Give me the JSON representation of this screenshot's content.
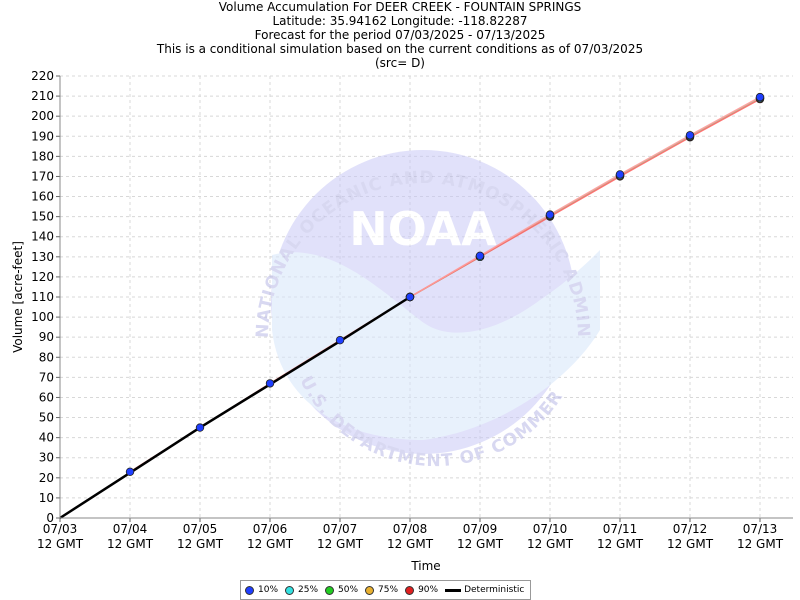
{
  "chart_data": {
    "type": "line",
    "title_lines": [
      "Volume Accumulation For DEER CREEK - FOUNTAIN SPRINGS",
      "Latitude: 35.94162 Longitude: -118.82287",
      "Forecast for the period 07/03/2025 - 07/13/2025",
      "This is a conditional simulation based on the current conditions as of 07/03/2025",
      "(src= D)"
    ],
    "xlabel": "Time",
    "ylabel": "Volume [acre-feet]",
    "ylim": [
      0,
      220
    ],
    "yticks": [
      0,
      10,
      20,
      30,
      40,
      50,
      60,
      70,
      80,
      90,
      100,
      110,
      120,
      130,
      140,
      150,
      160,
      170,
      180,
      190,
      200,
      210,
      220
    ],
    "x_tick_labels": [
      [
        "07/03",
        "12 GMT"
      ],
      [
        "07/04",
        "12 GMT"
      ],
      [
        "07/05",
        "12 GMT"
      ],
      [
        "07/06",
        "12 GMT"
      ],
      [
        "07/07",
        "12 GMT"
      ],
      [
        "07/08",
        "12 GMT"
      ],
      [
        "07/09",
        "12 GMT"
      ],
      [
        "07/10",
        "12 GMT"
      ],
      [
        "07/11",
        "12 GMT"
      ],
      [
        "07/12",
        "12 GMT"
      ],
      [
        "07/13",
        "12 GMT"
      ]
    ],
    "grid": true,
    "legend_position": "bottom-center",
    "series": [
      {
        "name": "10%",
        "color": "#1f3fff",
        "marker": "dot",
        "values": [
          null,
          23,
          45,
          67,
          88.5,
          110,
          130.5,
          151,
          171,
          190.5,
          209.5
        ]
      },
      {
        "name": "25%",
        "color": "#33e0e0",
        "marker": "dot",
        "values": [
          null,
          null,
          null,
          null,
          null,
          110,
          130,
          150.5,
          170.5,
          190,
          209
        ]
      },
      {
        "name": "50%",
        "color": "#22cc22",
        "marker": "dot",
        "values": [
          null,
          null,
          null,
          null,
          null,
          110,
          130,
          150.5,
          170.5,
          190,
          209
        ]
      },
      {
        "name": "75%",
        "color": "#e8b030",
        "marker": "dot",
        "values": [
          null,
          null,
          null,
          null,
          null,
          110,
          130,
          150.5,
          170.5,
          190,
          209
        ]
      },
      {
        "name": "90%",
        "color": "#e02020",
        "marker": "dot",
        "values": [
          null,
          null,
          null,
          null,
          null,
          110,
          130,
          150,
          170,
          189.5,
          208.5
        ]
      },
      {
        "name": "Deterministic",
        "color": "#000000",
        "marker": "line",
        "values": [
          0,
          22.5,
          45,
          66.5,
          88,
          110,
          null,
          null,
          null,
          null,
          null
        ]
      }
    ],
    "watermark": {
      "brand": "NOAA",
      "top_arc": "NATIONAL OCEANIC AND ATMOSPHERIC ADMINISTRATION",
      "bottom_arc": "U.S. DEPARTMENT OF COMMERCE"
    }
  }
}
